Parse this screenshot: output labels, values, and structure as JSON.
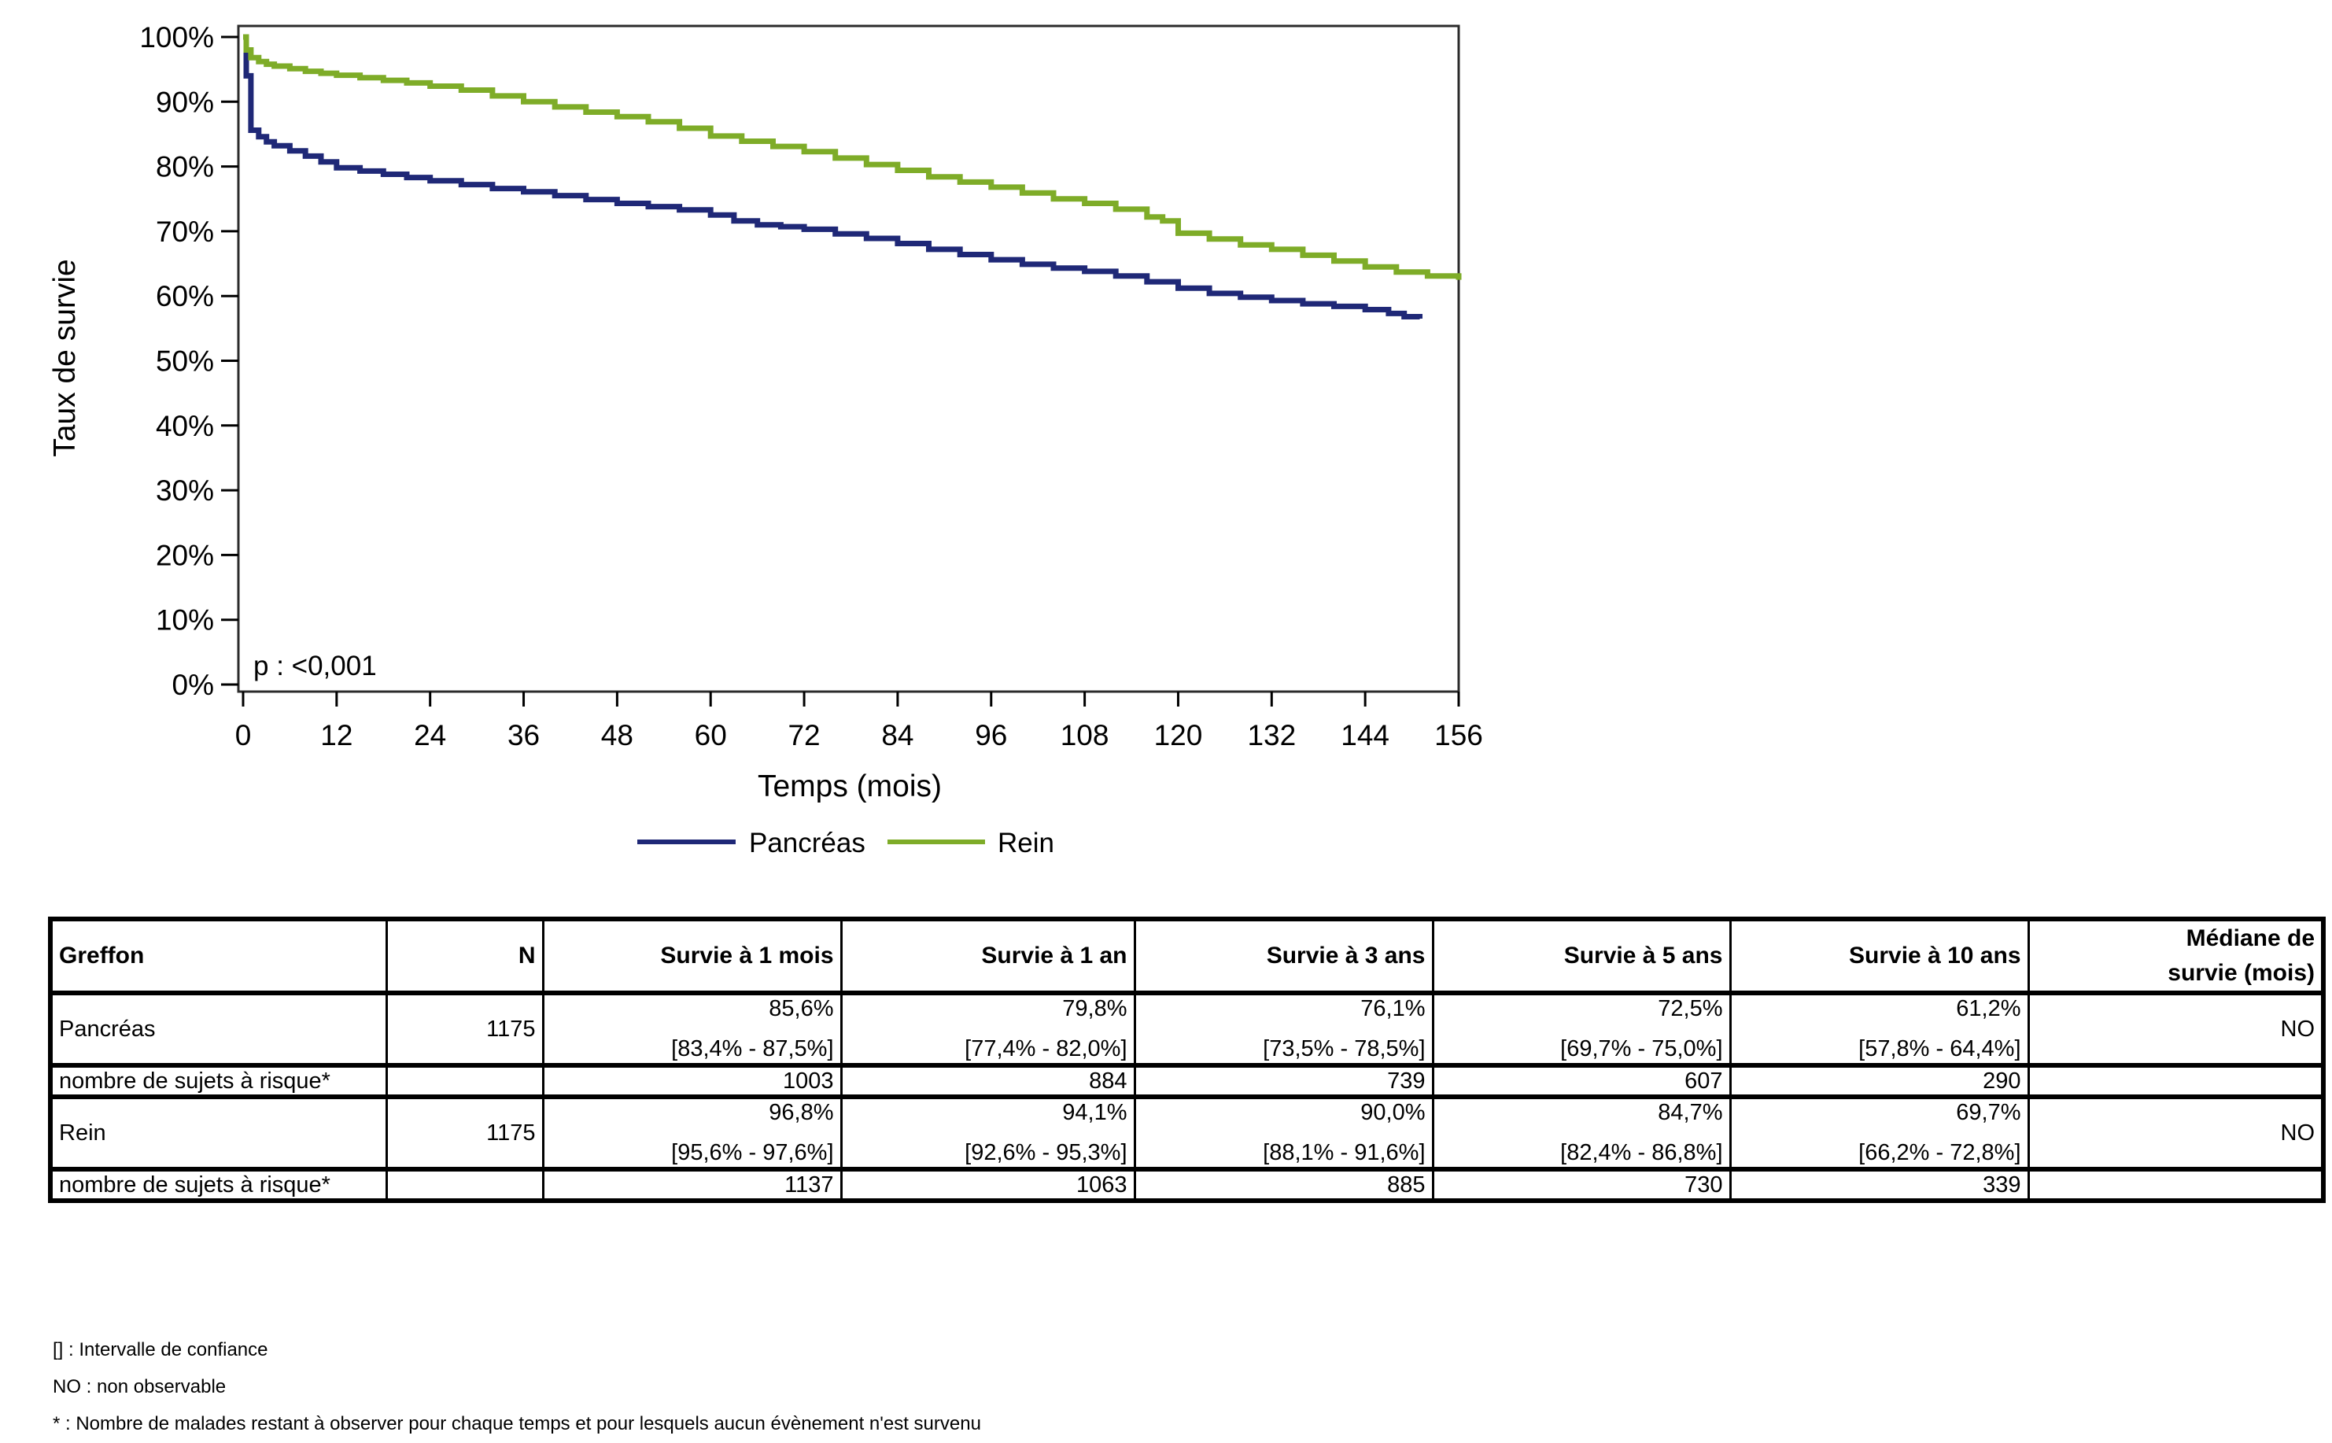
{
  "chart_data": {
    "type": "line",
    "title": "",
    "xlabel": "Temps (mois)",
    "ylabel": "Taux de survie",
    "annotation": "p : <0,001",
    "xlim": [
      0,
      156
    ],
    "ylim": [
      0,
      100
    ],
    "x_ticks": [
      0,
      12,
      24,
      36,
      48,
      60,
      72,
      84,
      96,
      108,
      120,
      132,
      144,
      156
    ],
    "y_ticks_pct": [
      0,
      10,
      20,
      30,
      40,
      50,
      60,
      70,
      80,
      90,
      100
    ],
    "grid": false,
    "legend_position": "bottom-center",
    "series": [
      {
        "key": "pancreas",
        "name": "Pancréas",
        "color": "#1F2877",
        "points": [
          [
            0,
            100
          ],
          [
            0.4,
            94
          ],
          [
            1,
            85.6
          ],
          [
            2,
            84.6
          ],
          [
            3,
            83.8
          ],
          [
            4,
            83.2
          ],
          [
            6,
            82.4
          ],
          [
            8,
            81.6
          ],
          [
            10,
            80.7
          ],
          [
            12,
            79.8
          ],
          [
            15,
            79.3
          ],
          [
            18,
            78.8
          ],
          [
            21,
            78.3
          ],
          [
            24,
            77.8
          ],
          [
            28,
            77.2
          ],
          [
            32,
            76.6
          ],
          [
            36,
            76.1
          ],
          [
            40,
            75.5
          ],
          [
            44,
            74.9
          ],
          [
            48,
            74.3
          ],
          [
            52,
            73.8
          ],
          [
            56,
            73.3
          ],
          [
            60,
            72.5
          ],
          [
            63,
            71.6
          ],
          [
            66,
            71
          ],
          [
            69,
            70.7
          ],
          [
            72,
            70.3
          ],
          [
            76,
            69.6
          ],
          [
            80,
            68.9
          ],
          [
            84,
            68.1
          ],
          [
            88,
            67.2
          ],
          [
            92,
            66.4
          ],
          [
            96,
            65.6
          ],
          [
            100,
            64.9
          ],
          [
            104,
            64.3
          ],
          [
            108,
            63.8
          ],
          [
            112,
            63.1
          ],
          [
            116,
            62.2
          ],
          [
            120,
            61.2
          ],
          [
            124,
            60.4
          ],
          [
            128,
            59.8
          ],
          [
            132,
            59.3
          ],
          [
            136,
            58.8
          ],
          [
            140,
            58.4
          ],
          [
            144,
            57.9
          ],
          [
            147,
            57.3
          ],
          [
            149,
            56.8
          ],
          [
            151,
            56.5
          ]
        ]
      },
      {
        "key": "rein",
        "name": "Rein",
        "color": "#7EAC28",
        "points": [
          [
            0,
            100
          ],
          [
            0.4,
            98
          ],
          [
            1,
            96.8
          ],
          [
            2,
            96.2
          ],
          [
            3,
            95.8
          ],
          [
            4,
            95.5
          ],
          [
            6,
            95.1
          ],
          [
            8,
            94.7
          ],
          [
            10,
            94.4
          ],
          [
            12,
            94.1
          ],
          [
            15,
            93.7
          ],
          [
            18,
            93.3
          ],
          [
            21,
            92.9
          ],
          [
            24,
            92.4
          ],
          [
            28,
            91.8
          ],
          [
            32,
            90.9
          ],
          [
            36,
            90
          ],
          [
            40,
            89.2
          ],
          [
            44,
            88.4
          ],
          [
            48,
            87.7
          ],
          [
            52,
            86.9
          ],
          [
            56,
            85.9
          ],
          [
            60,
            84.7
          ],
          [
            64,
            83.9
          ],
          [
            68,
            83.1
          ],
          [
            72,
            82.3
          ],
          [
            76,
            81.3
          ],
          [
            80,
            80.3
          ],
          [
            84,
            79.4
          ],
          [
            88,
            78.4
          ],
          [
            92,
            77.6
          ],
          [
            96,
            76.8
          ],
          [
            100,
            75.9
          ],
          [
            104,
            75
          ],
          [
            108,
            74.3
          ],
          [
            112,
            73.4
          ],
          [
            116,
            72.2
          ],
          [
            118,
            71.6
          ],
          [
            120,
            69.7
          ],
          [
            124,
            68.8
          ],
          [
            128,
            67.9
          ],
          [
            132,
            67.2
          ],
          [
            136,
            66.3
          ],
          [
            140,
            65.4
          ],
          [
            144,
            64.5
          ],
          [
            148,
            63.7
          ],
          [
            152,
            63.1
          ],
          [
            156,
            62.5
          ]
        ]
      }
    ]
  },
  "table": {
    "columns": [
      "Greffon",
      "N",
      "Survie à 1 mois",
      "Survie à 1 an",
      "Survie à 3 ans",
      "Survie à 5 ans",
      "Survie à 10 ans"
    ],
    "median_column": {
      "line1": "Médiane de",
      "line2": "survie (mois)"
    },
    "rows": [
      {
        "label": "Pancréas",
        "n": "1175",
        "values": [
          "85,6%",
          "79,8%",
          "76,1%",
          "72,5%",
          "61,2%"
        ],
        "ci": [
          "[83,4% - 87,5%]",
          "[77,4% - 82,0%]",
          "[73,5% - 78,5%]",
          "[69,7% - 75,0%]",
          "[57,8% - 64,4%]"
        ],
        "median": "NO"
      },
      {
        "label": "nombre de sujets à risque*",
        "values": [
          "1003",
          "884",
          "739",
          "607",
          "290"
        ]
      },
      {
        "label": "Rein",
        "n": "1175",
        "values": [
          "96,8%",
          "94,1%",
          "90,0%",
          "84,7%",
          "69,7%"
        ],
        "ci": [
          "[95,6% - 97,6%]",
          "[92,6% - 95,3%]",
          "[88,1% - 91,6%]",
          "[82,4% - 86,8%]",
          "[66,2% - 72,8%]"
        ],
        "median": "NO"
      },
      {
        "label": "nombre de sujets à risque*",
        "values": [
          "1137",
          "1063",
          "885",
          "730",
          "339"
        ]
      }
    ]
  },
  "footnotes": [
    "[] : Intervalle de confiance",
    "NO : non observable",
    "* : Nombre de malades restant à observer pour chaque temps et pour lesquels aucun évènement n'est survenu"
  ]
}
